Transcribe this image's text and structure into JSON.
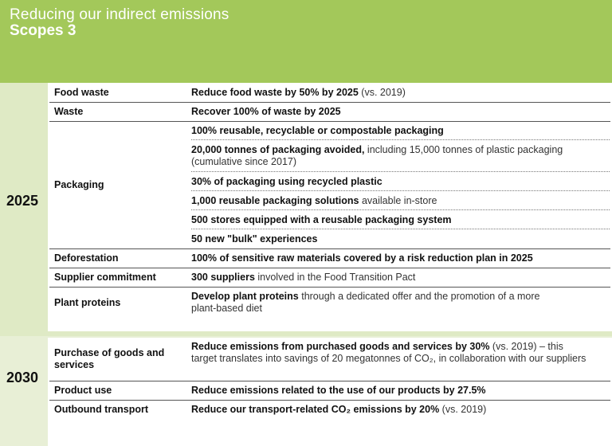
{
  "header": {
    "title": "Reducing our indirect emissions",
    "subtitle": "Scopes 3"
  },
  "sections": [
    {
      "year": "2025",
      "rows": [
        {
          "category": "Food waste",
          "bold": "Reduce food waste by 50% by 2025",
          "normal": " (vs. 2019)"
        },
        {
          "category": "Waste",
          "bold": "Recover 100% of waste by 2025",
          "normal": ""
        },
        {
          "category": "Packaging",
          "items": [
            {
              "bold": "100% reusable, recyclable or compostable packaging",
              "normal": ""
            },
            {
              "bold": "20,000 tonnes of packaging avoided,",
              "normal": " including 15,000 tonnes of plastic packaging (cumulative since 2017)"
            },
            {
              "bold": "30% of packaging using recycled plastic",
              "normal": ""
            },
            {
              "bold": "1,000 reusable packaging solutions",
              "normal": " available in-store"
            },
            {
              "bold": "500 stores equipped with a reusable packaging system",
              "normal": ""
            },
            {
              "bold": "50 new \"bulk\" experiences",
              "normal": ""
            }
          ]
        },
        {
          "category": "Deforestation",
          "bold": "100% of sensitive raw materials covered by a risk reduction plan in 2025",
          "normal": ""
        },
        {
          "category": "Supplier commitment",
          "bold": "300 suppliers",
          "normal": " involved in the Food Transition Pact"
        },
        {
          "category": "Plant proteins",
          "bold": "Develop plant proteins",
          "normal": " through a dedicated offer and the promotion of a more plant-based diet"
        }
      ]
    },
    {
      "year": "2030",
      "rows": [
        {
          "category": "Purchase of goods and services",
          "bold": "Reduce emissions from purchased goods and services by 30%",
          "normal": " (vs. 2019) – this target translates into savings of 20 megatonnes of CO₂, in collaboration with our suppliers"
        },
        {
          "category": "Product use",
          "bold": "Reduce emissions related to the use of our products by 27.5%",
          "normal": ""
        },
        {
          "category": "Outbound transport",
          "bold": "Reduce our transport-related CO₂ emissions by 20%",
          "normal": " (vs. 2019)"
        }
      ]
    }
  ]
}
